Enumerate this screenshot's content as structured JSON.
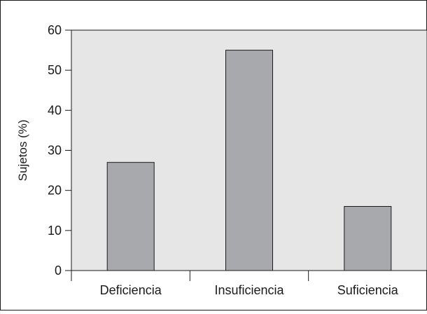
{
  "chart_data": {
    "type": "bar",
    "title": "",
    "xlabel": "",
    "ylabel": "Sujetos (%)",
    "categories": [
      "Deficiencia",
      "Insuficiencia",
      "Suficiencia"
    ],
    "values": [
      27,
      55,
      16
    ],
    "ylim": [
      0,
      60
    ],
    "yticks": [
      0,
      10,
      20,
      30,
      40,
      50,
      60
    ],
    "grid": false,
    "legend": "none",
    "colors": {
      "plot_background": "#e6e6e6",
      "bar_fill": "#a8a9ac",
      "bar_stroke": "#1a1a1a",
      "axis": "#1a1a1a"
    }
  }
}
